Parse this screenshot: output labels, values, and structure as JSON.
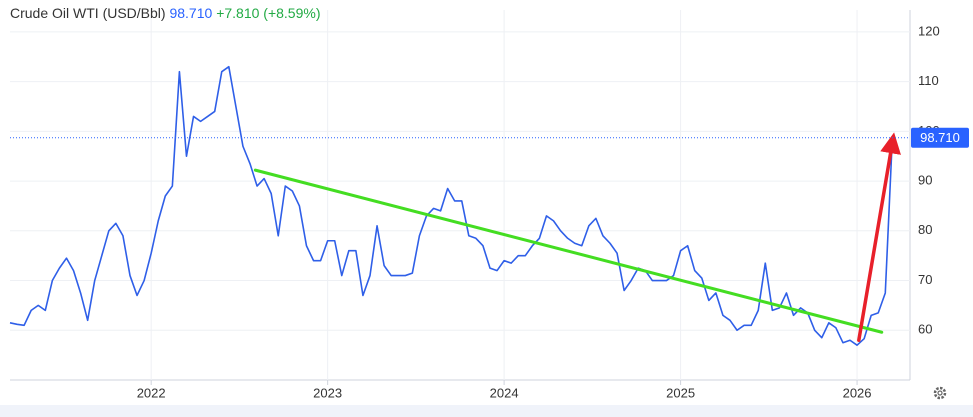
{
  "chart_data": {
    "type": "line",
    "title": "Crude Oil WTI (USD/Bbl)",
    "price": {
      "value": 98.71,
      "label": "98.710"
    },
    "change": "+7.810",
    "change_pct": "(+8.59%)",
    "xlim": [
      2021.2,
      2026.3
    ],
    "xticks": [
      2022,
      2023,
      2024,
      2025,
      2026
    ],
    "ylim": [
      50,
      124.4
    ],
    "yticks": [
      60,
      70,
      80,
      90,
      100,
      110,
      120
    ],
    "grid": true,
    "x": [
      2021.2,
      2021.24,
      2021.28,
      2021.32,
      2021.36,
      2021.4,
      2021.44,
      2021.48,
      2021.52,
      2021.56,
      2021.6,
      2021.64,
      2021.68,
      2021.72,
      2021.76,
      2021.8,
      2021.84,
      2021.88,
      2021.92,
      2021.96,
      2022,
      2022.04,
      2022.08,
      2022.12,
      2022.16,
      2022.2,
      2022.24,
      2022.28,
      2022.32,
      2022.36,
      2022.4,
      2022.44,
      2022.48,
      2022.52,
      2022.56,
      2022.6,
      2022.64,
      2022.68,
      2022.72,
      2022.76,
      2022.8,
      2022.84,
      2022.88,
      2022.92,
      2022.96,
      2023,
      2023.04,
      2023.08,
      2023.12,
      2023.16,
      2023.2,
      2023.24,
      2023.28,
      2023.32,
      2023.36,
      2023.4,
      2023.44,
      2023.48,
      2023.52,
      2023.56,
      2023.6,
      2023.64,
      2023.68,
      2023.72,
      2023.76,
      2023.8,
      2023.84,
      2023.88,
      2023.92,
      2023.96,
      2024,
      2024.04,
      2024.08,
      2024.12,
      2024.16,
      2024.2,
      2024.24,
      2024.28,
      2024.32,
      2024.36,
      2024.4,
      2024.44,
      2024.48,
      2024.52,
      2024.56,
      2024.6,
      2024.64,
      2024.68,
      2024.72,
      2024.76,
      2024.8,
      2024.84,
      2024.88,
      2024.92,
      2024.96,
      2025,
      2025.04,
      2025.08,
      2025.12,
      2025.16,
      2025.2,
      2025.24,
      2025.28,
      2025.32,
      2025.36,
      2025.4,
      2025.44,
      2025.48,
      2025.52,
      2025.56,
      2025.6,
      2025.64,
      2025.68,
      2025.72,
      2025.76,
      2025.8,
      2025.84,
      2025.88,
      2025.92,
      2025.96,
      2026,
      2026.04,
      2026.08,
      2026.12,
      2026.16,
      2026.2
    ],
    "series": [
      {
        "name": "Crude Oil WTI",
        "color": "#2f5fe8",
        "values": [
          61.5,
          61.2,
          61,
          64,
          65,
          64,
          70,
          72.5,
          74.5,
          72,
          67.5,
          62,
          70,
          75,
          80,
          81.5,
          79,
          71,
          67,
          70,
          75.5,
          82,
          87,
          89,
          112,
          95,
          103,
          102,
          103,
          104,
          112,
          113,
          105,
          97,
          93.5,
          89,
          90.5,
          87.5,
          79,
          89,
          88,
          85,
          77,
          74,
          74,
          78,
          78,
          71,
          76,
          76,
          67,
          71,
          81,
          73,
          71,
          71,
          71,
          71.5,
          79,
          83,
          84.5,
          84,
          88.5,
          86,
          86,
          79,
          78.5,
          77,
          72.5,
          72,
          74,
          73.5,
          75,
          75,
          77,
          78.5,
          83,
          82,
          80,
          78.5,
          77.5,
          77,
          81,
          82.5,
          79,
          77.5,
          75.5,
          68,
          70,
          72.5,
          72,
          70,
          70,
          70,
          71,
          76,
          77,
          72,
          70.5,
          66,
          67.5,
          63,
          62,
          60,
          61,
          61,
          64,
          73.5,
          64,
          64.5,
          67.5,
          63,
          64.5,
          63.5,
          60,
          58.5,
          61.5,
          60.5,
          57.5,
          58,
          57,
          58.3,
          63,
          63.5,
          67.5,
          98.71
        ]
      }
    ],
    "annotations": [
      {
        "type": "trendline",
        "color": "#44dd22",
        "x": [
          2022.59,
          2026.14
        ],
        "y": [
          92.2,
          59.6
        ]
      },
      {
        "type": "arrow",
        "color": "#e8202a",
        "x": [
          2026.01,
          2026.2
        ],
        "y": [
          58,
          97.7
        ]
      }
    ]
  }
}
